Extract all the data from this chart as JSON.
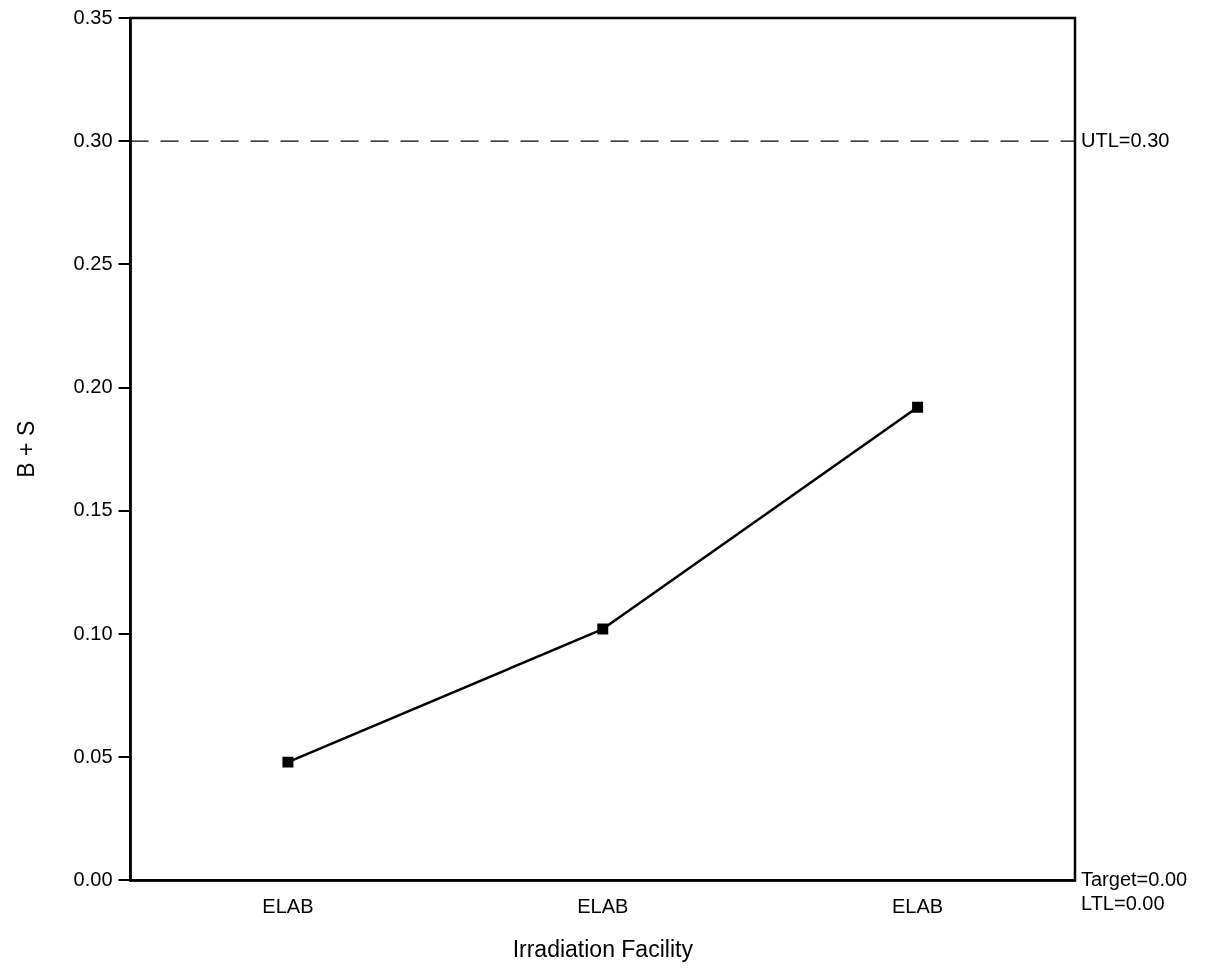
{
  "chart_data": {
    "type": "line",
    "xlabel": "Irradiation Facility",
    "ylabel": "B + S",
    "categories": [
      "ELAB",
      "ELAB",
      "ELAB"
    ],
    "series": [
      {
        "color": "#000000",
        "values": [
          0.048,
          0.102,
          0.192
        ]
      }
    ],
    "ylim": [
      0,
      0.35
    ],
    "yticks": [
      {
        "value": 0,
        "label": "0.00"
      },
      {
        "value": 0.05,
        "label": "0.05"
      },
      {
        "value": 0.1,
        "label": "0.10"
      },
      {
        "value": 0.15,
        "label": "0.15"
      },
      {
        "value": 0.2,
        "label": "0.20"
      },
      {
        "value": 0.25,
        "label": "0.25"
      },
      {
        "value": 0.3,
        "label": "0.30"
      },
      {
        "value": 0.35,
        "label": "0.35"
      }
    ],
    "ref_lines": [
      {
        "axis": "y",
        "value": 0.3,
        "label": "UTL=0.30",
        "line_style": "dashed",
        "color": "#000000"
      }
    ],
    "annotations": [
      "Target=0.00",
      "LTL=0.00"
    ],
    "grid": false,
    "legend": false,
    "marker": "square",
    "line_style": "solid"
  }
}
